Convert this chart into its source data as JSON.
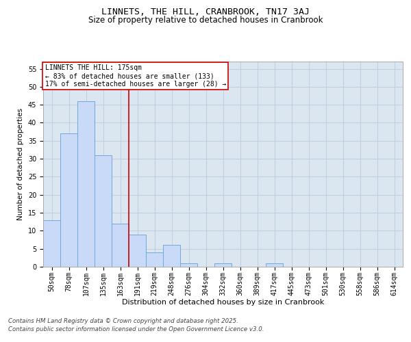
{
  "title": "LINNETS, THE HILL, CRANBROOK, TN17 3AJ",
  "subtitle": "Size of property relative to detached houses in Cranbrook",
  "xlabel": "Distribution of detached houses by size in Cranbrook",
  "ylabel": "Number of detached properties",
  "categories": [
    "50sqm",
    "78sqm",
    "107sqm",
    "135sqm",
    "163sqm",
    "191sqm",
    "219sqm",
    "248sqm",
    "276sqm",
    "304sqm",
    "332sqm",
    "360sqm",
    "389sqm",
    "417sqm",
    "445sqm",
    "473sqm",
    "501sqm",
    "530sqm",
    "558sqm",
    "586sqm",
    "614sqm"
  ],
  "values": [
    13,
    37,
    46,
    31,
    12,
    9,
    4,
    6,
    1,
    0,
    1,
    0,
    0,
    1,
    0,
    0,
    0,
    0,
    0,
    0,
    0
  ],
  "bar_color": "#c9daf8",
  "bar_edge_color": "#6fa8dc",
  "bar_linewidth": 0.7,
  "vertical_line_x": 4.5,
  "vline_color": "#cc0000",
  "vline_linewidth": 1.2,
  "annotation_text": "LINNETS THE HILL: 175sqm\n← 83% of detached houses are smaller (133)\n17% of semi-detached houses are larger (28) →",
  "annotation_box_color": "#ffffff",
  "annotation_box_edge": "#cc0000",
  "annotation_fontsize": 7.0,
  "grid_color": "#c0cfe0",
  "background_color": "#dce6f1",
  "ylim": [
    0,
    57
  ],
  "yticks": [
    0,
    5,
    10,
    15,
    20,
    25,
    30,
    35,
    40,
    45,
    50,
    55
  ],
  "title_fontsize": 9.5,
  "subtitle_fontsize": 8.5,
  "xlabel_fontsize": 8.0,
  "ylabel_fontsize": 7.5,
  "tick_fontsize": 7.0,
  "footer_line1": "Contains HM Land Registry data © Crown copyright and database right 2025.",
  "footer_line2": "Contains public sector information licensed under the Open Government Licence v3.0.",
  "footer_fontsize": 6.2
}
